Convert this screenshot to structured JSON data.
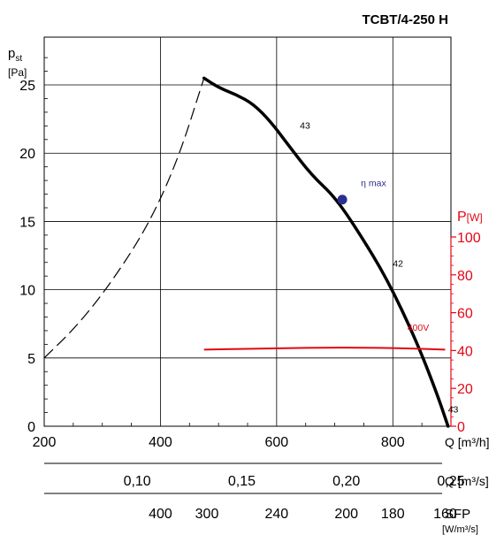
{
  "chart_data": {
    "type": "line",
    "title": "TCBT/4-250 H",
    "x_axis": {
      "unit_label": "Q [m³/h]",
      "range": [
        200,
        900
      ],
      "ticks": [
        200,
        400,
        600,
        800
      ],
      "tick_labels": [
        "200",
        "400",
        "600",
        "800"
      ]
    },
    "x_axis_2": {
      "unit_label": "Q [m³/s]",
      "ticks": [
        {
          "value_m3h": 360,
          "label": "0,10"
        },
        {
          "value_m3h": 540,
          "label": "0,15"
        },
        {
          "value_m3h": 720,
          "label": "0,20"
        },
        {
          "value_m3h": 900,
          "label": "0,25"
        }
      ]
    },
    "x_axis_3": {
      "unit_label": "SFP",
      "unit_sub": "[W/m³/s]",
      "ticks": [
        {
          "value_m3h": 400,
          "label": "400"
        },
        {
          "value_m3h": 480,
          "label": "300"
        },
        {
          "value_m3h": 600,
          "label": "240"
        },
        {
          "value_m3h": 720,
          "label": "200"
        },
        {
          "value_m3h": 800,
          "label": "180"
        },
        {
          "value_m3h": 890,
          "label": "160"
        }
      ]
    },
    "y_axis": {
      "label_main": "p",
      "label_sub": "st",
      "unit": "[Pa]",
      "range": [
        0,
        28.5
      ],
      "ticks": [
        0,
        5,
        10,
        15,
        20,
        25
      ]
    },
    "y_axis_right": {
      "label_main": "P",
      "unit": "[W]",
      "range": [
        0,
        100
      ],
      "ticks": [
        0,
        20,
        40,
        60,
        80,
        100
      ],
      "color": "#e30613"
    },
    "grid": true,
    "series": [
      {
        "axis": "left",
        "style": "dashed",
        "points": [
          [
            200,
            5.0
          ],
          [
            260,
            7.5
          ],
          [
            320,
            10.8
          ],
          [
            380,
            14.8
          ],
          [
            430,
            19.5
          ],
          [
            475,
            25.5
          ]
        ]
      },
      {
        "axis": "left",
        "style": "solid",
        "points": [
          [
            475,
            25.5
          ],
          [
            500,
            24.8
          ],
          [
            530,
            24.3
          ],
          [
            560,
            23.6
          ],
          [
            590,
            22.3
          ],
          [
            620,
            20.6
          ],
          [
            660,
            18.4
          ],
          [
            700,
            16.8
          ],
          [
            740,
            14.3
          ],
          [
            790,
            10.8
          ],
          [
            840,
            6.3
          ],
          [
            875,
            2.5
          ],
          [
            895,
            0
          ]
        ]
      },
      {
        "axis": "right",
        "style": "solid",
        "name": "400V",
        "points": [
          [
            475,
            40.5
          ],
          [
            600,
            41.2
          ],
          [
            700,
            41.6
          ],
          [
            800,
            41.4
          ],
          [
            890,
            40.5
          ]
        ]
      }
    ],
    "annotations": [
      {
        "text": "43",
        "x": 640,
        "y": 21.8
      },
      {
        "text": "η max",
        "x": 745,
        "y": 17.6
      },
      {
        "text": "42",
        "x": 800,
        "y": 11.7
      },
      {
        "text": "400V",
        "x": 825,
        "y": 7.0
      },
      {
        "text": "43",
        "x": 895,
        "y": 1.0
      }
    ],
    "marker": {
      "label": "η max",
      "x": 713,
      "y": 16.6,
      "color": "#2b2f8f"
    }
  }
}
